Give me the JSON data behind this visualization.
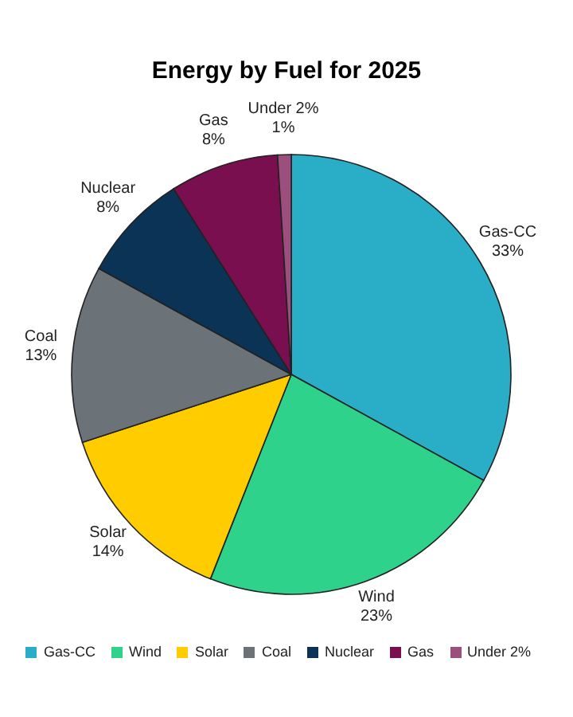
{
  "chart_data": {
    "type": "pie",
    "title": "Energy by Fuel for 2025",
    "categories": [
      "Gas-CC",
      "Wind",
      "Solar",
      "Coal",
      "Nuclear",
      "Gas",
      "Under 2%"
    ],
    "values": [
      33,
      23,
      14,
      13,
      8,
      8,
      1
    ],
    "value_labels": [
      "33%",
      "23%",
      "14%",
      "13%",
      "8%",
      "8%",
      "1%"
    ],
    "colors": [
      "#2aaec8",
      "#2ed28a",
      "#ffcc00",
      "#6b7378",
      "#0b3355",
      "#7a0f50",
      "#9c4f7c"
    ],
    "legend": "bottom"
  }
}
